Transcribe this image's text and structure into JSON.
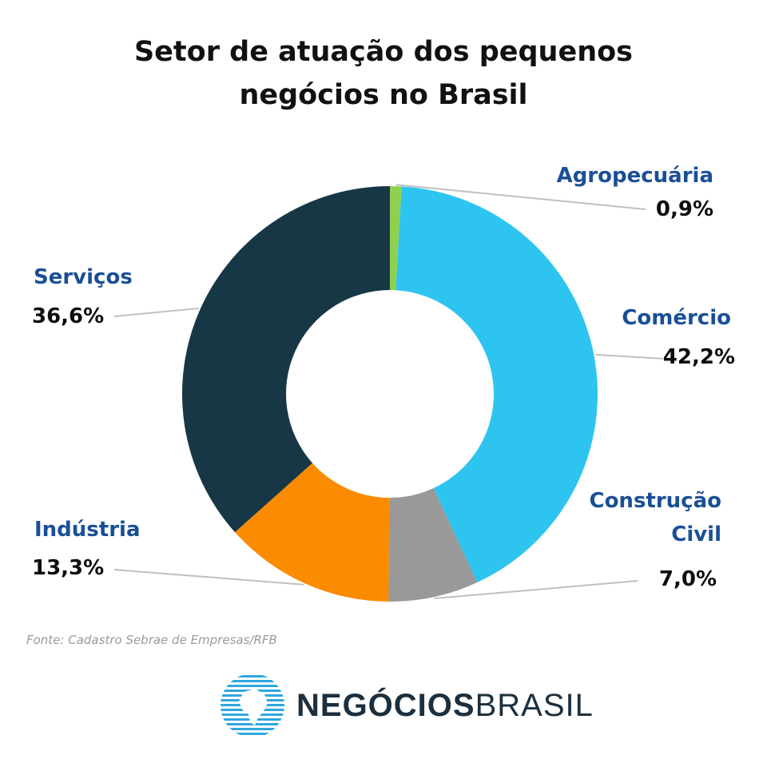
{
  "title_line1": "Setor de atuação dos pequenos",
  "title_line2": "negócios no Brasil",
  "source": "Fonte: Cadastro Sebrae de Empresas/RFB",
  "logo": {
    "part1": "NEGÓCIOS",
    "part2": "BRASIL",
    "icon": "globe-stripes-icon"
  },
  "colors": {
    "label": "#1a4f96",
    "value": "#0d0d0d",
    "leader": "#bfbfbf"
  },
  "chart_data": {
    "type": "pie",
    "donut": true,
    "title": "Setor de atuação dos pequenos negócios no Brasil",
    "slices": [
      {
        "label": "Agropecuária",
        "value": 0.9,
        "display": "0,9%",
        "color": "#8fd14f"
      },
      {
        "label": "Comércio",
        "value": 42.2,
        "display": "42,2%",
        "color": "#2ec4f0"
      },
      {
        "label": "Construção Civil",
        "label_lines": [
          "Construção",
          "Civil"
        ],
        "value": 7.0,
        "display": "7,0%",
        "color": "#999999"
      },
      {
        "label": "Indústria",
        "value": 13.3,
        "display": "13,3%",
        "color": "#fb8b00"
      },
      {
        "label": "Serviços",
        "value": 36.6,
        "display": "36,6%",
        "color": "#173746"
      }
    ]
  }
}
